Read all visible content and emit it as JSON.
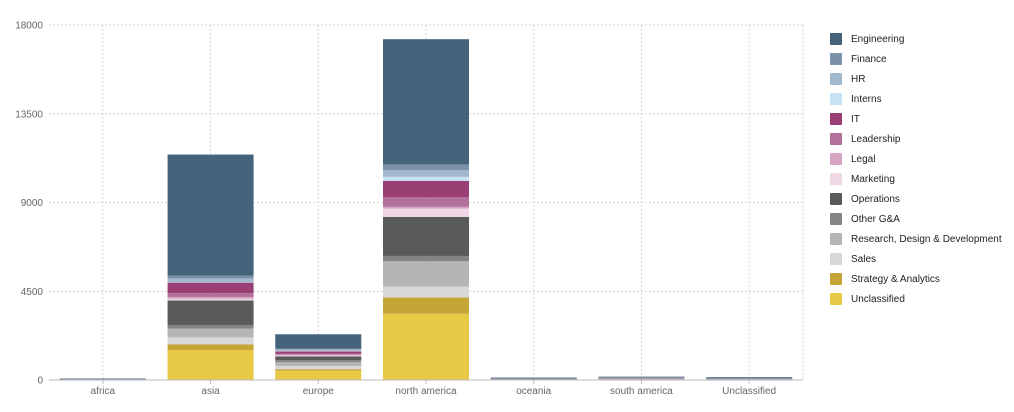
{
  "chart_data": {
    "type": "bar",
    "stacked": true,
    "categories": [
      "africa",
      "asia",
      "europe",
      "north america",
      "oceania",
      "south america",
      "Unclassified"
    ],
    "ylim": [
      0,
      18000
    ],
    "yticks": [
      0,
      4500,
      9000,
      13500,
      18000
    ],
    "ytick_labels": [
      "0",
      "4500",
      "9000",
      "13500",
      "18000"
    ],
    "grid": true,
    "legend_position": "right",
    "series": [
      {
        "name": "Unclassified",
        "color": "#e8c945",
        "values": [
          10,
          1520,
          470,
          3360,
          20,
          30,
          25
        ]
      },
      {
        "name": "Strategy & Analytics",
        "color": "#c4a535",
        "values": [
          5,
          280,
          80,
          820,
          5,
          10,
          5
        ]
      },
      {
        "name": "Sales",
        "color": "#d8d8d8",
        "values": [
          5,
          360,
          160,
          560,
          5,
          15,
          5
        ]
      },
      {
        "name": "Research, Design & Development",
        "color": "#b5b5b5",
        "values": [
          5,
          450,
          190,
          1280,
          5,
          10,
          5
        ]
      },
      {
        "name": "Other G&A",
        "color": "#848484",
        "values": [
          5,
          180,
          100,
          270,
          5,
          10,
          5
        ]
      },
      {
        "name": "Operations",
        "color": "#5a5a5a",
        "values": [
          5,
          1240,
          200,
          1980,
          10,
          15,
          15
        ]
      },
      {
        "name": "Marketing",
        "color": "#efd7e6",
        "values": [
          5,
          90,
          50,
          420,
          5,
          5,
          5
        ]
      },
      {
        "name": "Legal",
        "color": "#d5a4c2",
        "values": [
          5,
          80,
          30,
          90,
          5,
          5,
          5
        ]
      },
      {
        "name": "Leadership",
        "color": "#b3709a",
        "values": [
          5,
          200,
          50,
          480,
          5,
          5,
          5
        ]
      },
      {
        "name": "IT",
        "color": "#9a3f74",
        "values": [
          5,
          540,
          130,
          840,
          5,
          10,
          5
        ]
      },
      {
        "name": "Interns",
        "color": "#c7e3f3",
        "values": [
          2,
          30,
          20,
          200,
          2,
          5,
          2
        ]
      },
      {
        "name": "HR",
        "color": "#a2b8cc",
        "values": [
          5,
          180,
          60,
          350,
          5,
          10,
          5
        ]
      },
      {
        "name": "Finance",
        "color": "#7b91a8",
        "values": [
          5,
          140,
          50,
          280,
          5,
          5,
          5
        ]
      },
      {
        "name": "Engineering",
        "color": "#46637c",
        "values": [
          5,
          6140,
          730,
          6350,
          40,
          35,
          50
        ]
      }
    ],
    "legend_order": [
      "Engineering",
      "Finance",
      "HR",
      "Interns",
      "IT",
      "Leadership",
      "Legal",
      "Marketing",
      "Operations",
      "Other G&A",
      "Research, Design & Development",
      "Sales",
      "Strategy & Analytics",
      "Unclassified"
    ]
  }
}
